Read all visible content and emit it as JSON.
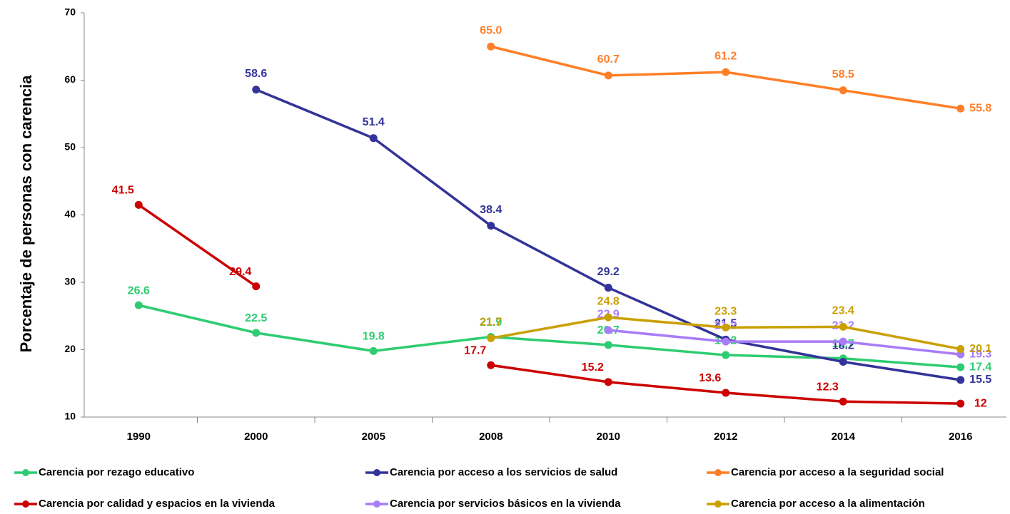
{
  "chart_data": {
    "type": "line",
    "y_label": "Porcentaje de personas con carencia",
    "categories": [
      "1990",
      "2000",
      "2005",
      "2008",
      "2010",
      "2012",
      "2014",
      "2016"
    ],
    "ylim": [
      10,
      70
    ],
    "yticks": [
      10,
      20,
      30,
      40,
      50,
      60,
      70
    ],
    "grid": false,
    "legend": "bottom",
    "series": [
      {
        "name": "Carencia por rezago educativo",
        "color": "#2ecc71",
        "values": [
          26.6,
          22.5,
          19.8,
          21.9,
          20.7,
          19.2,
          18.7,
          17.4
        ],
        "value_labels": [
          "26.6",
          "22.5",
          "19.8",
          "21.9",
          "20.7",
          "19.2",
          "18.7",
          "17.4"
        ]
      },
      {
        "name": "Carencia por acceso a los servicios de salud",
        "color": "#333399",
        "values": [
          null,
          58.6,
          51.4,
          38.4,
          29.2,
          21.5,
          18.2,
          15.5
        ],
        "value_labels": [
          null,
          "58.6",
          "51.4",
          "38.4",
          "29.2",
          "21.5",
          "18.2",
          "15.5"
        ]
      },
      {
        "name": "Carencia por acceso a la seguridad social",
        "color": "#ff7f27",
        "values": [
          null,
          null,
          null,
          65,
          60.7,
          61.2,
          58.5,
          55.8
        ],
        "value_labels": [
          null,
          null,
          null,
          "65.0",
          "60.7",
          "61.2",
          "58.5",
          "55.8"
        ]
      },
      {
        "name": "Carencia por calidad y espacios en la vivienda",
        "color": "#cc0000",
        "values": [
          41.5,
          29.4,
          null,
          17.7,
          15.2,
          13.6,
          12.3,
          12
        ],
        "value_labels": [
          "41.5",
          "29.4",
          null,
          "17.7",
          "15.2",
          "13.6",
          "12.3",
          "12"
        ]
      },
      {
        "name": "Carencia por servicios básicos en la vivienda",
        "color": "#a97cf8",
        "values": [
          null,
          null,
          null,
          null,
          22.9,
          21.2,
          21.2,
          19.3
        ],
        "value_labels": [
          null,
          null,
          null,
          null,
          "22.9",
          "21.2",
          "21.2",
          "19.3"
        ]
      },
      {
        "name": "Carencia por acceso a la alimentación",
        "color": "#c9a000",
        "values": [
          null,
          null,
          null,
          21.7,
          24.8,
          23.3,
          23.4,
          20.1
        ],
        "value_labels": [
          null,
          null,
          null,
          "21.7",
          "24.8",
          "23.3",
          "23.4",
          "20.1"
        ]
      }
    ]
  }
}
